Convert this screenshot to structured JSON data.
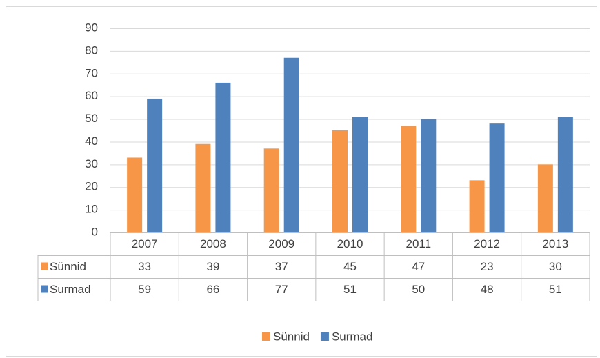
{
  "chart_data": {
    "type": "bar",
    "categories": [
      "2007",
      "2008",
      "2009",
      "2010",
      "2011",
      "2012",
      "2013"
    ],
    "series": [
      {
        "name": "Sünnid",
        "color": "#F79646",
        "values": [
          33,
          39,
          37,
          45,
          47,
          23,
          30
        ]
      },
      {
        "name": "Surmad",
        "color": "#4F81BD",
        "values": [
          59,
          66,
          77,
          51,
          50,
          48,
          51
        ]
      }
    ],
    "ylim": [
      0,
      90
    ],
    "yticks": [
      0,
      10,
      20,
      30,
      40,
      50,
      60,
      70,
      80,
      90
    ],
    "grid": true,
    "legend": "bottom"
  }
}
